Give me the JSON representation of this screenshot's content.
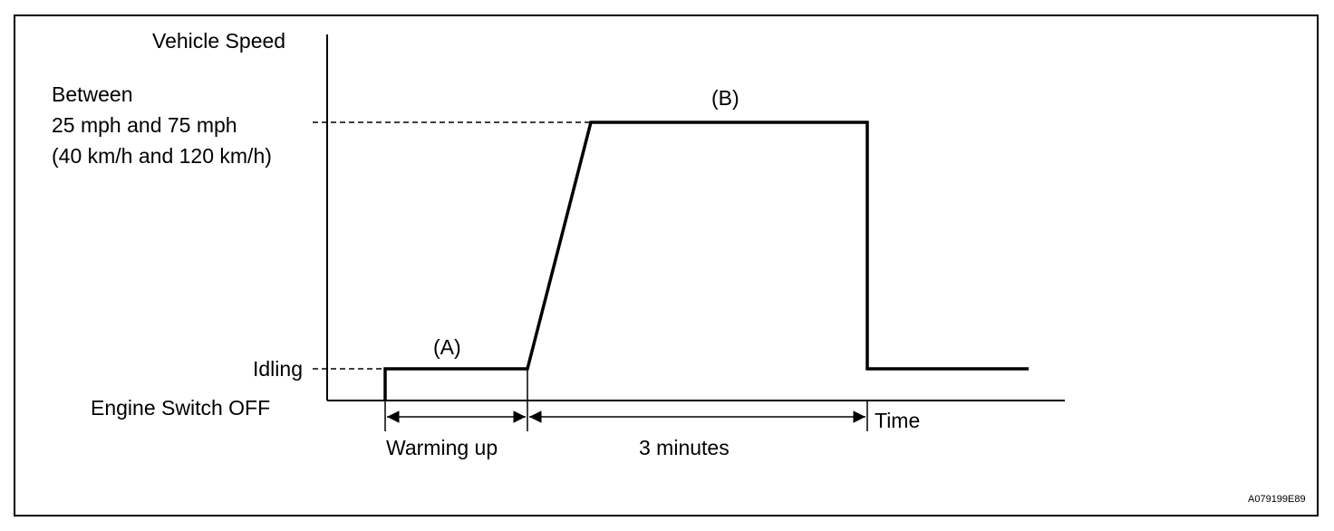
{
  "axes": {
    "y_title": "Vehicle Speed",
    "x_title": "Time"
  },
  "levels": {
    "high_line1": "Between",
    "high_line2": "25 mph and 75 mph",
    "high_line3": "(40 km/h and 120 km/h)",
    "idle": "Idling",
    "off": "Engine Switch OFF"
  },
  "segments": {
    "a_label": "(A)",
    "b_label": "(B)"
  },
  "durations": {
    "warming": "Warming up",
    "three_min": "3 minutes"
  },
  "figure_code": "A079199E89"
}
